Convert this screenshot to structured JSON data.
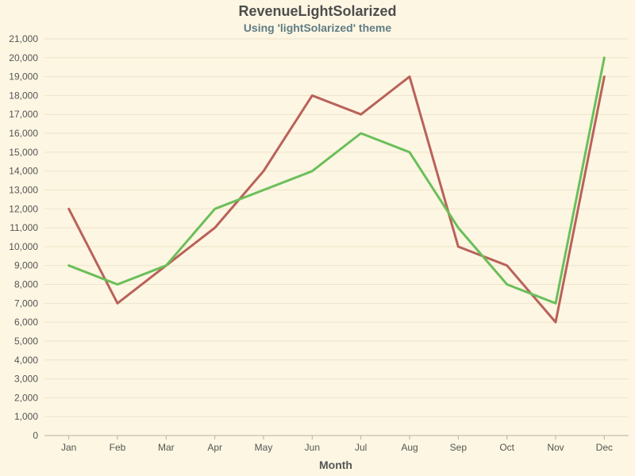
{
  "chart_data": {
    "type": "line",
    "title": "RevenueLightSolarized",
    "subtitle": "Using 'lightSolarized' theme",
    "xlabel": "Month",
    "ylabel": "",
    "categories": [
      "Jan",
      "Feb",
      "Mar",
      "Apr",
      "May",
      "Jun",
      "Jul",
      "Aug",
      "Sep",
      "Oct",
      "Nov",
      "Dec"
    ],
    "ylim": [
      0,
      21000
    ],
    "y_ticks": [
      "0",
      "1,000",
      "2,000",
      "3,000",
      "4,000",
      "5,000",
      "6,000",
      "7,000",
      "8,000",
      "9,000",
      "10,000",
      "11,000",
      "12,000",
      "13,000",
      "14,000",
      "15,000",
      "16,000",
      "17,000",
      "18,000",
      "19,000",
      "20,000",
      "21,000"
    ],
    "grid": true,
    "series": [
      {
        "color": "#b9625a",
        "values": [
          12000,
          7000,
          9000,
          11000,
          14000,
          18000,
          17000,
          19000,
          10000,
          9000,
          6000,
          19000
        ]
      },
      {
        "color": "#6bbf59",
        "values": [
          9000,
          8000,
          9000,
          12000,
          13000,
          14000,
          16000,
          15000,
          11000,
          8000,
          7000,
          20000
        ]
      }
    ]
  }
}
